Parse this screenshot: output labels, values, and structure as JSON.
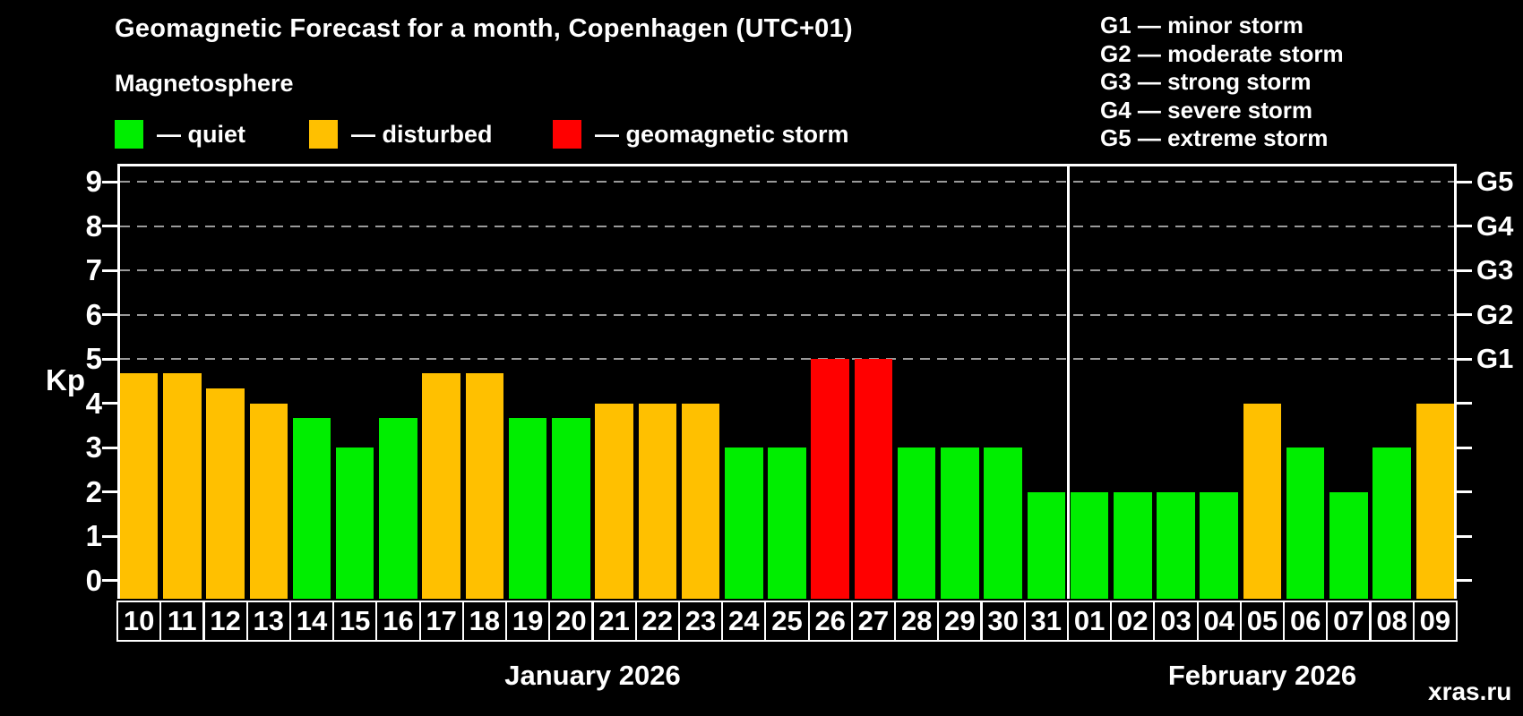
{
  "header": {
    "title": "Geomagnetic Forecast for a month, Copenhagen (UTC+01)",
    "subtitle": "Magnetosphere",
    "legend": [
      {
        "key": "quiet",
        "label": "— quiet"
      },
      {
        "key": "disturbed",
        "label": "— disturbed"
      },
      {
        "key": "storm",
        "label": "— geomagnetic storm"
      }
    ],
    "g_legend": [
      "G1 — minor storm",
      "G2 — moderate storm",
      "G3 — strong storm",
      "G4 — severe storm",
      "G5 — extreme storm"
    ]
  },
  "colors": {
    "quiet": "#00EE00",
    "disturbed": "#FFC000",
    "storm": "#FF0000",
    "axis": "#FFFFFF",
    "grid": "#9A9A9A",
    "watermark": "#848484"
  },
  "chart_data": {
    "type": "bar",
    "title": "Geomagnetic Forecast for a month, Copenhagen (UTC+01)",
    "ylabel": "Kp",
    "ylim": [
      0,
      9
    ],
    "grid": "dashed-at-storm-levels",
    "y_ticks": [
      0,
      1,
      2,
      3,
      4,
      5,
      6,
      7,
      8,
      9
    ],
    "grid_levels": [
      5,
      6,
      7,
      8,
      9
    ],
    "g_ticks": [
      {
        "kp": 5,
        "label": "G1"
      },
      {
        "kp": 6,
        "label": "G2"
      },
      {
        "kp": 7,
        "label": "G3"
      },
      {
        "kp": 8,
        "label": "G4"
      },
      {
        "kp": 9,
        "label": "G5"
      }
    ],
    "days": [
      {
        "date": "10",
        "kp": 4.67,
        "status": "disturbed"
      },
      {
        "date": "11",
        "kp": 4.67,
        "status": "disturbed"
      },
      {
        "date": "12",
        "kp": 4.33,
        "status": "disturbed"
      },
      {
        "date": "13",
        "kp": 4.0,
        "status": "disturbed"
      },
      {
        "date": "14",
        "kp": 3.67,
        "status": "quiet"
      },
      {
        "date": "15",
        "kp": 3.0,
        "status": "quiet"
      },
      {
        "date": "16",
        "kp": 3.67,
        "status": "quiet"
      },
      {
        "date": "17",
        "kp": 4.67,
        "status": "disturbed"
      },
      {
        "date": "18",
        "kp": 4.67,
        "status": "disturbed"
      },
      {
        "date": "19",
        "kp": 3.67,
        "status": "quiet"
      },
      {
        "date": "20",
        "kp": 3.67,
        "status": "quiet"
      },
      {
        "date": "21",
        "kp": 4.0,
        "status": "disturbed"
      },
      {
        "date": "22",
        "kp": 4.0,
        "status": "disturbed"
      },
      {
        "date": "23",
        "kp": 4.0,
        "status": "disturbed"
      },
      {
        "date": "24",
        "kp": 3.0,
        "status": "quiet"
      },
      {
        "date": "25",
        "kp": 3.0,
        "status": "quiet"
      },
      {
        "date": "26",
        "kp": 5.0,
        "status": "storm"
      },
      {
        "date": "27",
        "kp": 5.0,
        "status": "storm"
      },
      {
        "date": "28",
        "kp": 3.0,
        "status": "quiet"
      },
      {
        "date": "29",
        "kp": 3.0,
        "status": "quiet"
      },
      {
        "date": "30",
        "kp": 3.0,
        "status": "quiet"
      },
      {
        "date": "31",
        "kp": 2.0,
        "status": "quiet"
      },
      {
        "date": "01",
        "kp": 2.0,
        "status": "quiet"
      },
      {
        "date": "02",
        "kp": 2.0,
        "status": "quiet"
      },
      {
        "date": "03",
        "kp": 2.0,
        "status": "quiet"
      },
      {
        "date": "04",
        "kp": 2.0,
        "status": "quiet"
      },
      {
        "date": "05",
        "kp": 4.0,
        "status": "disturbed"
      },
      {
        "date": "06",
        "kp": 3.0,
        "status": "quiet"
      },
      {
        "date": "07",
        "kp": 2.0,
        "status": "quiet"
      },
      {
        "date": "08",
        "kp": 3.0,
        "status": "quiet"
      },
      {
        "date": "09",
        "kp": 4.0,
        "status": "disturbed"
      }
    ],
    "months": [
      {
        "label": "January 2026",
        "start_index": 0,
        "days": 22
      },
      {
        "label": "February 2026",
        "start_index": 22,
        "days": 9
      }
    ],
    "legend_position": "top-left"
  },
  "watermark": "xras.ru"
}
